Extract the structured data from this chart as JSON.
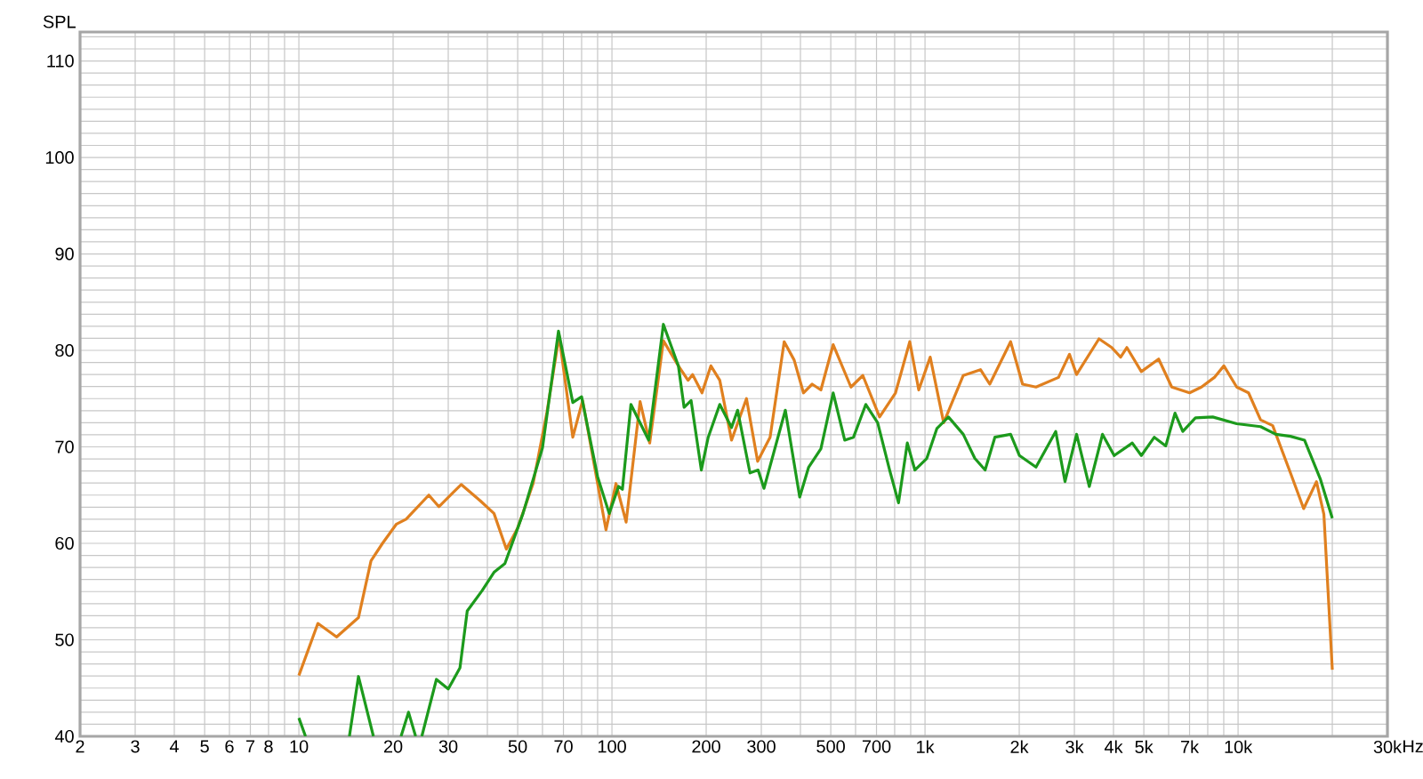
{
  "chart_data": {
    "type": "line",
    "ylabel": "SPL",
    "log": "x",
    "grid": true,
    "xlim": [
      2,
      30000
    ],
    "ylim": [
      40,
      113
    ],
    "xticks": [
      2,
      3,
      4,
      5,
      6,
      7,
      8,
      {
        "value": 9,
        "label": null
      },
      10,
      20,
      30,
      {
        "value": 40,
        "label": null
      },
      50,
      {
        "value": 60,
        "label": null
      },
      70,
      {
        "value": 80,
        "label": null
      },
      {
        "value": 90,
        "label": null
      },
      100,
      200,
      300,
      {
        "value": 400,
        "label": null
      },
      500,
      {
        "value": 600,
        "label": null
      },
      700,
      {
        "value": 800,
        "label": null
      },
      {
        "value": 900,
        "label": null
      },
      {
        "value": 1000,
        "label": "1k"
      },
      {
        "value": 2000,
        "label": "2k"
      },
      {
        "value": 3000,
        "label": "3k"
      },
      {
        "value": 4000,
        "label": "4k"
      },
      {
        "value": 5000,
        "label": "5k"
      },
      {
        "value": 6000,
        "label": null
      },
      {
        "value": 7000,
        "label": "7k"
      },
      {
        "value": 8000,
        "label": null
      },
      {
        "value": 9000,
        "label": null
      },
      {
        "value": 10000,
        "label": "10k"
      },
      {
        "value": 20000,
        "label": null
      },
      {
        "value": 30000,
        "label": "30k"
      }
    ],
    "xlabel": "Hz",
    "yticks": [
      40,
      {
        "value": 41.25,
        "label": null
      },
      {
        "value": 42.5,
        "label": null
      },
      {
        "value": 43.75,
        "label": null
      },
      {
        "value": 45,
        "label": null
      },
      {
        "value": 46.25,
        "label": null
      },
      {
        "value": 47.5,
        "label": null
      },
      {
        "value": 48.75,
        "label": null
      },
      50,
      {
        "value": 51.25,
        "label": null
      },
      {
        "value": 52.5,
        "label": null
      },
      {
        "value": 53.75,
        "label": null
      },
      {
        "value": 55,
        "label": null
      },
      {
        "value": 56.25,
        "label": null
      },
      {
        "value": 57.5,
        "label": null
      },
      {
        "value": 58.75,
        "label": null
      },
      60,
      {
        "value": 61.25,
        "label": null
      },
      {
        "value": 62.5,
        "label": null
      },
      {
        "value": 63.75,
        "label": null
      },
      {
        "value": 65,
        "label": null
      },
      {
        "value": 66.25,
        "label": null
      },
      {
        "value": 67.5,
        "label": null
      },
      {
        "value": 68.75,
        "label": null
      },
      70,
      {
        "value": 71.25,
        "label": null
      },
      {
        "value": 72.5,
        "label": null
      },
      {
        "value": 73.75,
        "label": null
      },
      {
        "value": 75,
        "label": null
      },
      {
        "value": 76.25,
        "label": null
      },
      {
        "value": 77.5,
        "label": null
      },
      {
        "value": 78.75,
        "label": null
      },
      80,
      {
        "value": 81.25,
        "label": null
      },
      {
        "value": 82.5,
        "label": null
      },
      {
        "value": 83.75,
        "label": null
      },
      {
        "value": 85,
        "label": null
      },
      {
        "value": 86.25,
        "label": null
      },
      {
        "value": 87.5,
        "label": null
      },
      {
        "value": 88.75,
        "label": null
      },
      90,
      {
        "value": 91.25,
        "label": null
      },
      {
        "value": 92.5,
        "label": null
      },
      {
        "value": 93.75,
        "label": null
      },
      {
        "value": 95,
        "label": null
      },
      {
        "value": 96.25,
        "label": null
      },
      {
        "value": 97.5,
        "label": null
      },
      {
        "value": 98.75,
        "label": null
      },
      100,
      {
        "value": 101.25,
        "label": null
      },
      {
        "value": 102.5,
        "label": null
      },
      {
        "value": 103.75,
        "label": null
      },
      {
        "value": 105,
        "label": null
      },
      {
        "value": 106.25,
        "label": null
      },
      {
        "value": 107.5,
        "label": null
      },
      {
        "value": 108.75,
        "label": null
      },
      110,
      {
        "value": 111.25,
        "label": null
      },
      {
        "value": 112.5,
        "label": null
      }
    ],
    "series": [
      {
        "color": "#e0801f",
        "x": [
          10,
          11.5,
          13.2,
          15.5,
          17,
          18.5,
          20.5,
          22,
          26,
          28,
          33,
          38,
          42,
          46,
          50,
          56,
          62,
          67.8,
          75,
          80.6,
          95.7,
          103,
          111,
          123,
          132,
          146,
          163,
          175,
          181,
          194,
          207,
          221,
          241,
          269,
          292,
          320,
          355,
          382,
          409,
          436,
          465,
          509,
          580,
          633,
          716,
          805,
          894,
          955,
          1039,
          1147,
          1325,
          1504,
          1610,
          1877,
          2049,
          2262,
          2670,
          2893,
          3049,
          3596,
          3947,
          4216,
          4413,
          4909,
          5576,
          6140,
          7000,
          7640,
          8400,
          9010,
          9900,
          10800,
          11800,
          12900,
          14700,
          16200,
          17800,
          18800,
          20000
        ],
        "values": [
          46.3,
          51.7,
          50.3,
          52.3,
          58.2,
          60,
          62,
          62.5,
          65,
          63.8,
          66.1,
          64.4,
          63.1,
          59.4,
          61.6,
          66.2,
          73.6,
          81.5,
          71.0,
          74.8,
          61.4,
          66.2,
          62.2,
          74.7,
          70.4,
          81.0,
          78.4,
          76.9,
          77.5,
          75.6,
          78.4,
          76.9,
          70.7,
          75,
          68.5,
          71,
          80.9,
          79,
          75.6,
          76.5,
          75.9,
          80.6,
          76.2,
          77.4,
          73.1,
          75.6,
          80.9,
          75.9,
          79.3,
          72.5,
          77.4,
          78,
          76.5,
          80.9,
          76.5,
          76.2,
          77.2,
          79.6,
          77.5,
          81.2,
          80.3,
          79.3,
          80.3,
          77.8,
          79.1,
          76.2,
          75.6,
          76.2,
          77.2,
          78.4,
          76.2,
          75.6,
          72.8,
          72.2,
          67.3,
          63.6,
          66.4,
          63,
          46.9
        ]
      },
      {
        "color": "#1c9a1c",
        "x": [
          10,
          10.5,
          12,
          14.5,
          15.5,
          17.3,
          19,
          21.2,
          22.4,
          23.6,
          24.1,
          24.7,
          27.5,
          30,
          32.7,
          34.5,
          38.5,
          42,
          45.5,
          52,
          60,
          67.5,
          75,
          80,
          90,
          98,
          105,
          108,
          115,
          131,
          146,
          163,
          170,
          179,
          193,
          203,
          221,
          241,
          252,
          276,
          293,
          306,
          358,
          398,
          425,
          465,
          509,
          554,
          591,
          647,
          706,
          771,
          823,
          878,
          928,
          1013,
          1091,
          1188,
          1325,
          1443,
          1556,
          1672,
          1877,
          2003,
          2262,
          2615,
          2800,
          3049,
          3348,
          3690,
          4020,
          4592,
          4909,
          5400,
          5875,
          6290,
          6660,
          7310,
          8300,
          9900,
          11800,
          13200,
          14700,
          16300,
          18300,
          20000
        ],
        "values": [
          41.9,
          40,
          null,
          40,
          46.2,
          40,
          null,
          40,
          42.5,
          40,
          null,
          40,
          45.9,
          44.9,
          47.1,
          53,
          55.1,
          57,
          57.9,
          63.1,
          69.9,
          82,
          74.6,
          75.2,
          66.9,
          63.1,
          65.9,
          65.6,
          74.4,
          70.7,
          82.7,
          78.4,
          74.1,
          74.8,
          67.6,
          71,
          74.4,
          72.0,
          73.8,
          67.3,
          67.6,
          65.7,
          73.8,
          64.8,
          67.9,
          69.8,
          75.6,
          70.7,
          71,
          74.4,
          72.5,
          67.6,
          64.2,
          70.4,
          67.6,
          68.8,
          71.9,
          73.1,
          71.3,
          68.8,
          67.6,
          71,
          71.3,
          69.1,
          67.9,
          71.6,
          66.4,
          71.3,
          65.9,
          71.3,
          69.1,
          70.4,
          69.1,
          71,
          70.1,
          73.5,
          71.6,
          73.0,
          73.1,
          72.4,
          72.1,
          71.3,
          71.1,
          70.7,
          66.7,
          62.6
        ]
      }
    ]
  }
}
